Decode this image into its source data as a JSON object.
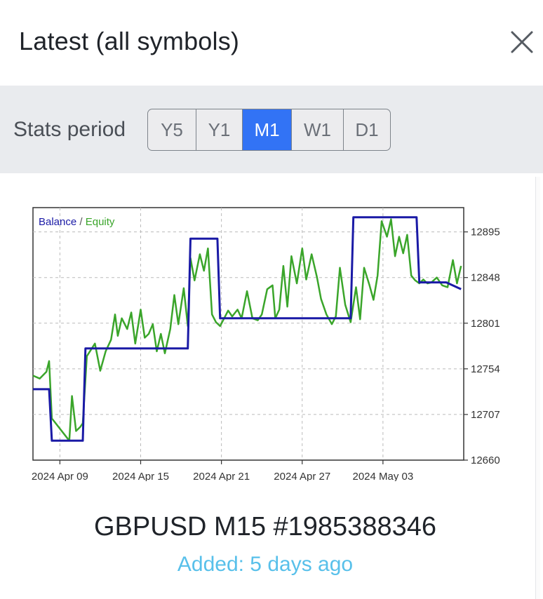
{
  "header": {
    "title": "Latest (all symbols)",
    "close_icon": "close-icon"
  },
  "stats": {
    "label": "Stats period",
    "periods": [
      "Y5",
      "Y1",
      "M1",
      "W1",
      "D1"
    ],
    "selected": "M1"
  },
  "item": {
    "title": "GBPUSD M15 #1985388346",
    "added": "Added: 5 days ago"
  },
  "colors": {
    "accent": "#3273f5",
    "balance": "#1a1aa6",
    "equity": "#3aa52a",
    "added_text": "#58c0ea"
  },
  "chart_data": {
    "type": "line",
    "legend": [
      "Balance",
      "Equity"
    ],
    "y_ticks": [
      12895,
      12848,
      12801,
      12754,
      12707,
      12660
    ],
    "x_ticks": [
      "2024 Apr 09",
      "2024 Apr 15",
      "2024 Apr 21",
      "2024 Apr 27",
      "2024 May 03"
    ],
    "ylim": [
      12660,
      12920
    ],
    "grid": true,
    "series": [
      {
        "name": "Balance",
        "x": [
          0,
          1.2,
          1.4,
          3.7,
          3.9,
          11.5,
          11.7,
          13.7,
          13.9,
          23.6,
          23.8,
          28.5,
          28.7,
          30.5,
          30.7,
          31.8
        ],
        "y": [
          12733,
          12733,
          12680,
          12680,
          12775,
          12775,
          12888,
          12888,
          12806,
          12806,
          12910,
          12910,
          12843,
          12843,
          12843,
          12836
        ]
      },
      {
        "name": "Equity",
        "x": [
          0,
          0.5,
          1.0,
          1.2,
          1.4,
          2.7,
          2.9,
          3.2,
          3.5,
          3.7,
          4.0,
          4.6,
          5.0,
          5.4,
          5.8,
          6.1,
          6.3,
          6.6,
          7.0,
          7.3,
          7.6,
          8.0,
          8.3,
          8.6,
          8.9,
          9.2,
          9.5,
          9.8,
          10.2,
          10.5,
          10.8,
          11.2,
          11.5,
          11.7,
          12.0,
          12.4,
          12.7,
          13.0,
          13.3,
          13.6,
          13.9,
          14.2,
          14.5,
          14.8,
          15.2,
          15.5,
          15.9,
          16.3,
          16.7,
          17.0,
          17.4,
          17.8,
          18.0,
          18.3,
          18.6,
          18.9,
          19.2,
          19.6,
          20.0,
          20.3,
          20.7,
          21.1,
          21.4,
          21.8,
          22.2,
          22.5,
          22.8,
          23.2,
          23.6,
          24.0,
          24.3,
          24.6,
          25.0,
          25.3,
          25.6,
          25.9,
          26.3,
          26.6,
          26.9,
          27.2,
          27.5,
          27.8,
          28.1,
          28.4,
          28.7,
          29.0,
          29.3,
          29.6,
          30.0,
          30.4,
          30.8,
          31.2,
          31.5,
          31.8
        ],
        "y": [
          12747,
          12744,
          12751,
          12762,
          12703,
          12680,
          12726,
          12690,
          12694,
          12698,
          12767,
          12780,
          12752,
          12772,
          12784,
          12810,
          12788,
          12806,
          12795,
          12812,
          12780,
          12815,
          12786,
          12790,
          12800,
          12772,
          12790,
          12770,
          12795,
          12830,
          12800,
          12837,
          12798,
          12868,
          12845,
          12872,
          12855,
          12878,
          12810,
          12802,
          12798,
          12806,
          12814,
          12808,
          12815,
          12806,
          12834,
          12806,
          12804,
          12810,
          12836,
          12840,
          12806,
          12815,
          12860,
          12818,
          12870,
          12842,
          12878,
          12846,
          12872,
          12848,
          12826,
          12810,
          12800,
          12808,
          12858,
          12820,
          12802,
          12838,
          12805,
          12858,
          12840,
          12825,
          12850,
          12906,
          12890,
          12908,
          12870,
          12890,
          12873,
          12892,
          12850,
          12845,
          12842,
          12846,
          12842,
          12843,
          12848,
          12840,
          12838,
          12866,
          12842,
          12860
        ]
      }
    ]
  }
}
